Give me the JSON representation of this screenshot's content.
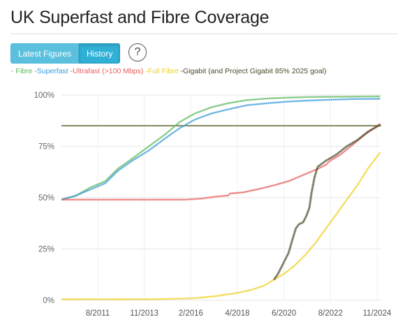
{
  "header": {
    "title": "UK Superfast and Fibre Coverage"
  },
  "toolbar": {
    "latest_label": "Latest Figures",
    "history_label": "History",
    "help_label": "?"
  },
  "colors": {
    "fibre": "#5cb85c",
    "superfast": "#3a9ad9",
    "ultrafast": "#e85c5c",
    "full_fibre": "#f0d020",
    "gigabit": "#4d4a2a",
    "target_line": "#6b6b3a",
    "grid": "#e6e6e6"
  },
  "chart_data": {
    "type": "line",
    "title": "UK Superfast and Fibre Coverage",
    "xlabel": "",
    "ylabel": "",
    "x_ticks": [
      "8/2011",
      "11/2013",
      "2/2016",
      "4/2018",
      "6/2020",
      "8/2022",
      "11/2024"
    ],
    "y_ticks": [
      "0%",
      "25%",
      "50%",
      "75%",
      "100%"
    ],
    "ylim": [
      0,
      100
    ],
    "x_range": [
      2009.6,
      2024.95
    ],
    "grid": true,
    "legend_position": "top",
    "legend": [
      {
        "key": "fibre",
        "text": "- Fibre "
      },
      {
        "key": "superfast",
        "text": "-Superfast "
      },
      {
        "key": "ultrafast",
        "text": "-Ultrafast (>100 Mbps) "
      },
      {
        "key": "full_fibre",
        "text": "-Full Fibre "
      },
      {
        "key": "gigabit",
        "text": "-Gigabit (and Project Gigabit 85% 2025 goal)"
      }
    ],
    "target": {
      "name": "Project Gigabit 85% 2025 goal",
      "y": 85
    },
    "series": [
      {
        "name": "Fibre",
        "color_key": "fibre",
        "points": [
          [
            2009.6,
            49
          ],
          [
            2010.3,
            51
          ],
          [
            2011.0,
            55
          ],
          [
            2011.7,
            58
          ],
          [
            2012.3,
            64
          ],
          [
            2013.0,
            69
          ],
          [
            2013.8,
            75
          ],
          [
            2014.6,
            81
          ],
          [
            2015.3,
            87
          ],
          [
            2016.0,
            91
          ],
          [
            2016.8,
            94
          ],
          [
            2017.6,
            96
          ],
          [
            2018.5,
            97.5
          ],
          [
            2019.5,
            98.3
          ],
          [
            2020.5,
            98.7
          ],
          [
            2021.5,
            99
          ],
          [
            2022.5,
            99.1
          ],
          [
            2023.5,
            99.2
          ],
          [
            2024.9,
            99.3
          ]
        ]
      },
      {
        "name": "Superfast",
        "color_key": "superfast",
        "points": [
          [
            2009.6,
            49
          ],
          [
            2010.3,
            51
          ],
          [
            2011.0,
            54
          ],
          [
            2011.7,
            57
          ],
          [
            2012.3,
            63
          ],
          [
            2013.0,
            68
          ],
          [
            2013.8,
            73
          ],
          [
            2014.6,
            79
          ],
          [
            2015.3,
            84
          ],
          [
            2016.0,
            88
          ],
          [
            2016.8,
            91
          ],
          [
            2017.6,
            93
          ],
          [
            2018.5,
            95
          ],
          [
            2019.5,
            96
          ],
          [
            2020.5,
            96.8
          ],
          [
            2021.5,
            97.3
          ],
          [
            2022.5,
            97.7
          ],
          [
            2023.5,
            98
          ],
          [
            2024.9,
            98.1
          ]
        ]
      },
      {
        "name": "Ultrafast (>100 Mbps)",
        "color_key": "ultrafast",
        "points": [
          [
            2009.6,
            49
          ],
          [
            2011.0,
            49
          ],
          [
            2012.5,
            49
          ],
          [
            2014.0,
            49
          ],
          [
            2015.5,
            49
          ],
          [
            2016.3,
            49.5
          ],
          [
            2017.0,
            50.5
          ],
          [
            2017.6,
            51
          ],
          [
            2017.7,
            52
          ],
          [
            2018.3,
            52.5
          ],
          [
            2019.0,
            54
          ],
          [
            2019.8,
            56
          ],
          [
            2020.5,
            58
          ],
          [
            2021.2,
            61
          ],
          [
            2021.9,
            64
          ],
          [
            2022.3,
            66
          ],
          [
            2022.4,
            67
          ],
          [
            2022.5,
            68
          ],
          [
            2023.0,
            71
          ],
          [
            2023.6,
            76
          ],
          [
            2024.2,
            81
          ],
          [
            2024.9,
            86
          ]
        ]
      },
      {
        "name": "Full Fibre",
        "color_key": "full_fibre",
        "points": [
          [
            2009.6,
            0.5
          ],
          [
            2011.0,
            0.5
          ],
          [
            2012.5,
            0.5
          ],
          [
            2014.0,
            0.5
          ],
          [
            2015.0,
            0.7
          ],
          [
            2016.0,
            1
          ],
          [
            2017.0,
            2
          ],
          [
            2018.0,
            3.5
          ],
          [
            2018.7,
            5
          ],
          [
            2019.3,
            7
          ],
          [
            2019.8,
            10
          ],
          [
            2020.3,
            13
          ],
          [
            2020.8,
            17
          ],
          [
            2021.3,
            22
          ],
          [
            2021.8,
            28
          ],
          [
            2022.3,
            35
          ],
          [
            2022.8,
            42
          ],
          [
            2023.3,
            49
          ],
          [
            2023.8,
            56
          ],
          [
            2024.3,
            64
          ],
          [
            2024.9,
            72
          ]
        ]
      },
      {
        "name": "Gigabit",
        "color_key": "gigabit",
        "points": [
          [
            2019.8,
            10
          ],
          [
            2020.0,
            13
          ],
          [
            2020.2,
            17
          ],
          [
            2020.4,
            21
          ],
          [
            2020.5,
            23
          ],
          [
            2020.7,
            30
          ],
          [
            2020.85,
            35
          ],
          [
            2021.0,
            37
          ],
          [
            2021.2,
            38
          ],
          [
            2021.35,
            41
          ],
          [
            2021.5,
            45
          ],
          [
            2021.6,
            52
          ],
          [
            2021.75,
            60
          ],
          [
            2021.9,
            65
          ],
          [
            2022.3,
            68
          ],
          [
            2022.8,
            71
          ],
          [
            2023.3,
            75
          ],
          [
            2023.8,
            78
          ],
          [
            2024.3,
            82
          ],
          [
            2024.9,
            85.5
          ]
        ]
      }
    ]
  }
}
